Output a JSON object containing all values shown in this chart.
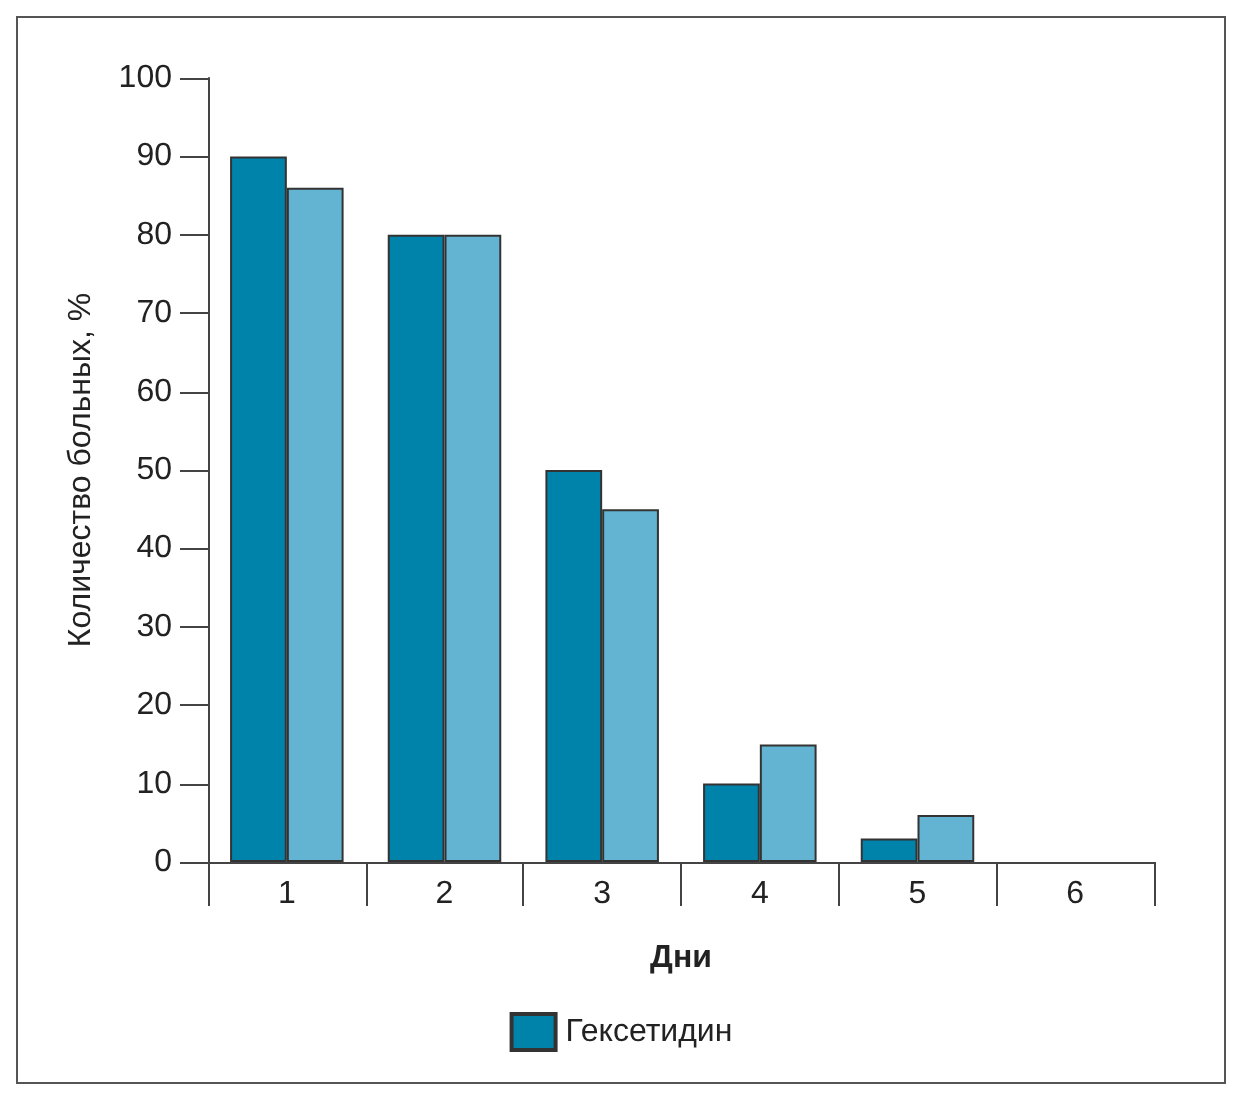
{
  "chart_data": {
    "type": "bar",
    "xlabel": "Дни",
    "ylabel": "Количество больных, %",
    "categories": [
      "1",
      "2",
      "3",
      "4",
      "5",
      "6"
    ],
    "series": [
      {
        "name": "Гексетидин",
        "color": "#0083aa",
        "values": [
          90,
          80,
          50,
          10,
          3,
          null
        ]
      },
      {
        "color": "#62b4d2",
        "values": [
          86,
          80,
          45,
          15,
          6,
          null
        ]
      }
    ],
    "ylim": [
      0,
      100
    ],
    "yticks": [
      0,
      10,
      20,
      30,
      40,
      50,
      60,
      70,
      80,
      90,
      100
    ],
    "grid": false,
    "legend": "bottom"
  }
}
